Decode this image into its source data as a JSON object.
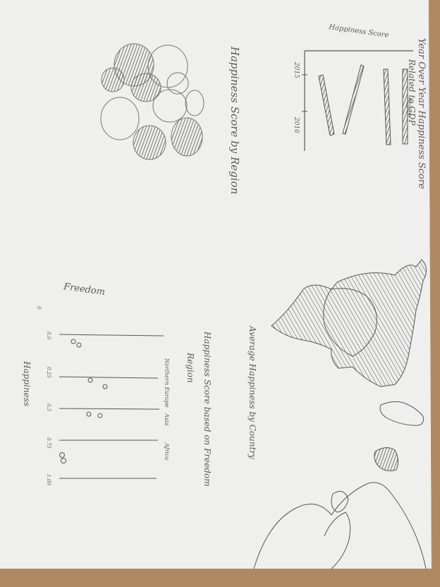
{
  "photo": {
    "table_color": "#b08963",
    "paper_color": "#efefed",
    "pencil_color": "#555555"
  },
  "sketch_texts": {
    "top_chart_title": "Happiness Score",
    "top_chart_subtitle_line1": "Year Over Year Happiness Score",
    "top_chart_subtitle_line2": "Related to GDP",
    "top_chart_series": "Region",
    "year_2015": "2015",
    "year_2016": "2016",
    "bubble_title": "Happiness Score by Region",
    "map_title": "Average Happiness by Country",
    "dot_title": "Happiness Score based on Freedom",
    "dot_legend_title": "Region",
    "dot_legend_items": [
      "Northern Europe",
      "Asia",
      "Africa"
    ],
    "dot_y_label": "Freedom",
    "dot_x_label": "Happiness",
    "dot_y_tick": "0",
    "dot_ticks": [
      "0.0",
      "0.25",
      "0.5",
      "0.75",
      "1.00"
    ]
  }
}
